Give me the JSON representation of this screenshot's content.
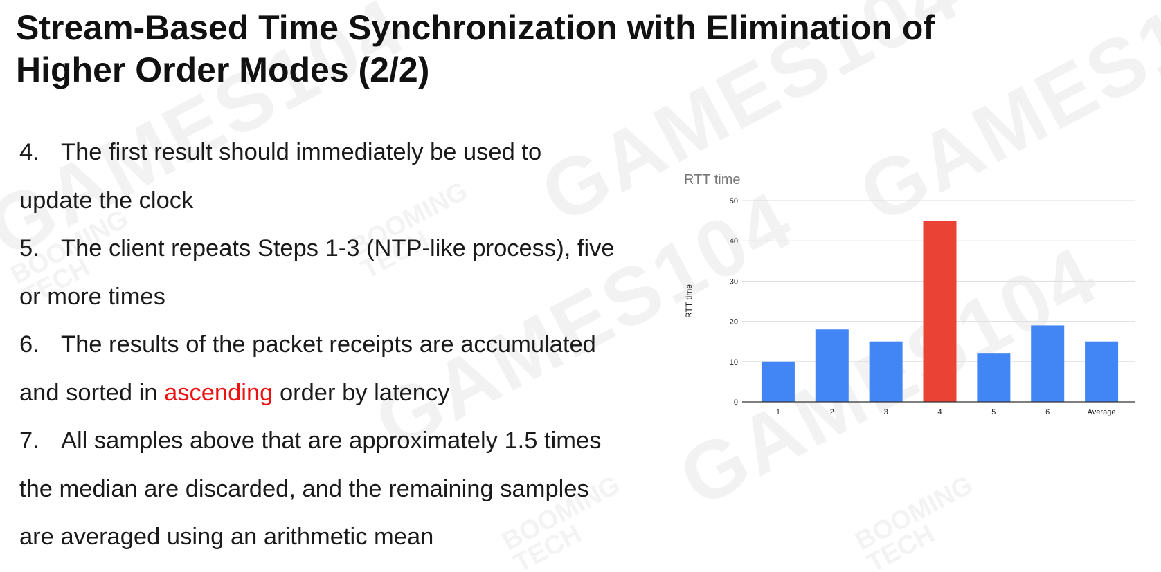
{
  "slide": {
    "title_line1": "Stream-Based Time Synchronization with Elimination of",
    "title_line2": "Higher Order Modes (2/2)"
  },
  "watermark": {
    "brand": "GAMES104",
    "logo_line1": "BOOMING",
    "logo_line2": "TECH"
  },
  "bullets": {
    "item4": {
      "number": "4.",
      "line1": "The first result should immediately be used to",
      "line2": "update the clock"
    },
    "item5": {
      "number": "5.",
      "line1": "The client repeats Steps 1-3 (NTP-like process), five",
      "line2": "or more times"
    },
    "item6": {
      "number": "6.",
      "line1": "The results of the packet receipts are accumulated",
      "line2_before": "and sorted in ",
      "line2_highlight": "ascending",
      "line2_after": " order by latency"
    },
    "item7": {
      "number": "7.",
      "line1": "All samples above that are approximately 1.5 times",
      "line2": "the median are discarded, and the remaining samples",
      "line3": "are averaged using an arithmetic mean"
    }
  },
  "colors": {
    "bar_default": "#4285f4",
    "bar_outlier": "#ea4335",
    "highlight_text": "#ee1111",
    "gridline": "#dddddd",
    "axis_line": "#333333",
    "chart_title": "#777777"
  },
  "chart_data": {
    "type": "bar",
    "title": "RTT time",
    "ylabel": "RTT time",
    "xlabel": "",
    "categories": [
      "1",
      "2",
      "3",
      "4",
      "5",
      "6",
      "Average"
    ],
    "values": [
      10,
      18,
      15,
      45,
      12,
      19,
      15
    ],
    "highlighted_categories": [
      "4"
    ],
    "ylim": [
      0,
      50
    ],
    "yticks": [
      "0",
      "10",
      "20",
      "30",
      "40",
      "50"
    ],
    "grid": true,
    "legend": "none"
  }
}
